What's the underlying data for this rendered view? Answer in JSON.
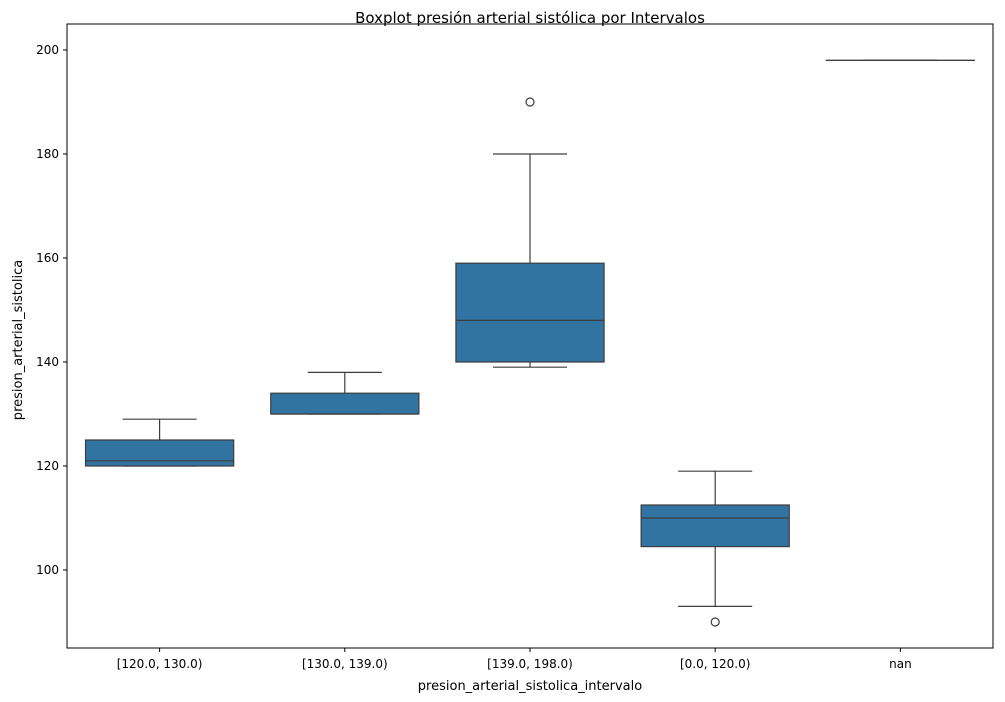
{
  "chart_data": {
    "type": "boxplot",
    "title": "Boxplot presión arterial sistólica por Intervalos",
    "xlabel": "presion_arterial_sistolica_intervalo",
    "ylabel": "presion_arterial_sistolica",
    "ylim": [
      85,
      205
    ],
    "yticks": [
      100,
      120,
      140,
      160,
      180,
      200
    ],
    "grid": false,
    "box_color": "#3274a1",
    "line_color": "#3d3d3d",
    "categories": [
      "[120.0, 130.0)",
      "[130.0, 139.0)",
      "[139.0, 198.0)",
      "[0.0, 120.0)",
      "nan"
    ],
    "boxes": [
      {
        "whisker_low": 120,
        "q1": 120,
        "median": 121,
        "q3": 125,
        "whisker_high": 129,
        "outliers": []
      },
      {
        "whisker_low": 130,
        "q1": 130,
        "median": 130,
        "q3": 134,
        "whisker_high": 138,
        "outliers": []
      },
      {
        "whisker_low": 139,
        "q1": 140,
        "median": 148,
        "q3": 159,
        "whisker_high": 180,
        "outliers": [
          190
        ]
      },
      {
        "whisker_low": 93,
        "q1": 104.5,
        "median": 110,
        "q3": 112.5,
        "whisker_high": 119,
        "outliers": [
          90
        ]
      },
      {
        "whisker_low": 198,
        "q1": 198,
        "median": 198,
        "q3": 198,
        "whisker_high": 198,
        "outliers": []
      }
    ]
  }
}
